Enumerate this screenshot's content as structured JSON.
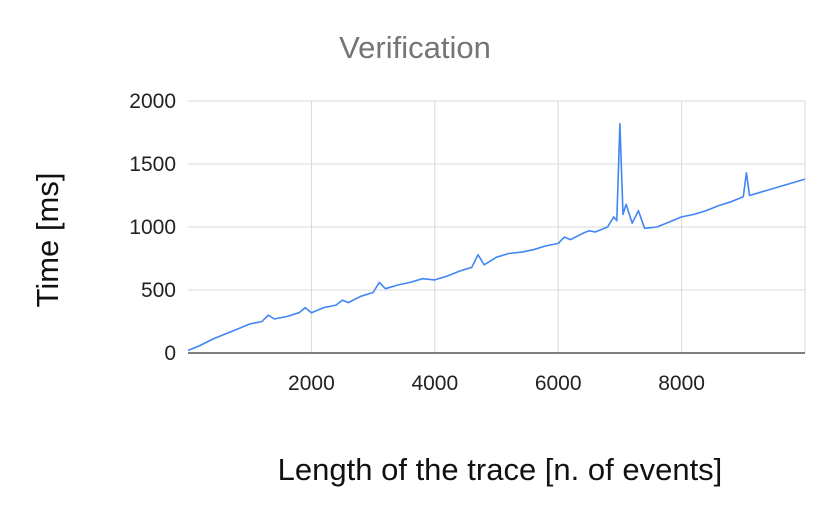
{
  "chart_data": {
    "type": "line",
    "title": "Verification",
    "xlabel": "Length of the trace [n. of events]",
    "ylabel": "Time [ms]",
    "xlim": [
      0,
      10000
    ],
    "ylim": [
      0,
      2000
    ],
    "x_ticks": [
      2000,
      4000,
      6000,
      8000
    ],
    "y_ticks": [
      0,
      500,
      1000,
      1500,
      2000
    ],
    "grid": true,
    "legend": "none",
    "series_color": "#4285f4",
    "series": [
      {
        "x": [
          0,
          200,
          400,
          600,
          800,
          1000,
          1200,
          1300,
          1400,
          1600,
          1800,
          1900,
          2000,
          2200,
          2400,
          2500,
          2600,
          2800,
          3000,
          3100,
          3200,
          3400,
          3600,
          3800,
          4000,
          4200,
          4400,
          4600,
          4700,
          4800,
          5000,
          5200,
          5400,
          5600,
          5800,
          6000,
          6100,
          6200,
          6400,
          6500,
          6600,
          6800,
          6900,
          6950,
          7000,
          7050,
          7100,
          7200,
          7300,
          7400,
          7600,
          7800,
          8000,
          8200,
          8400,
          8600,
          8800,
          9000,
          9050,
          9100,
          10000
        ],
        "y": [
          20,
          60,
          110,
          150,
          190,
          230,
          250,
          300,
          270,
          290,
          320,
          360,
          320,
          360,
          380,
          420,
          400,
          450,
          480,
          560,
          510,
          540,
          560,
          590,
          580,
          610,
          650,
          680,
          780,
          700,
          760,
          790,
          800,
          820,
          850,
          870,
          920,
          900,
          950,
          970,
          960,
          1000,
          1080,
          1050,
          1820,
          1100,
          1180,
          1030,
          1130,
          990,
          1000,
          1040,
          1080,
          1100,
          1130,
          1170,
          1200,
          1240,
          1430,
          1250,
          1380
        ]
      }
    ]
  }
}
